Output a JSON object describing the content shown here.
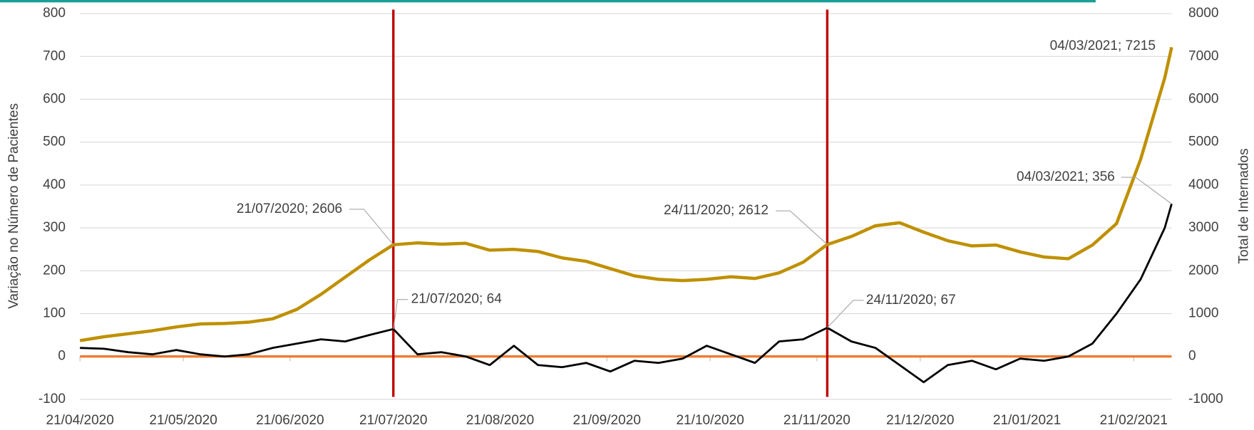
{
  "chart_data": {
    "type": "line",
    "y_label": "Variação no Número de Pacientes",
    "y2_label": "Total de Internados",
    "x": [
      "21/04/2020",
      "28/04/2020",
      "05/05/2020",
      "12/05/2020",
      "19/05/2020",
      "26/05/2020",
      "02/06/2020",
      "09/06/2020",
      "16/06/2020",
      "23/06/2020",
      "30/06/2020",
      "07/07/2020",
      "14/07/2020",
      "21/07/2020",
      "28/07/2020",
      "04/08/2020",
      "11/08/2020",
      "18/08/2020",
      "25/08/2020",
      "01/09/2020",
      "08/09/2020",
      "15/09/2020",
      "22/09/2020",
      "29/09/2020",
      "06/10/2020",
      "13/10/2020",
      "20/10/2020",
      "27/10/2020",
      "03/11/2020",
      "10/11/2020",
      "17/11/2020",
      "24/11/2020",
      "01/12/2020",
      "08/12/2020",
      "15/12/2020",
      "22/12/2020",
      "29/12/2020",
      "05/01/2021",
      "12/01/2021",
      "19/01/2021",
      "26/01/2021",
      "02/02/2021",
      "09/02/2021",
      "16/02/2021",
      "23/02/2021",
      "02/03/2021",
      "04/03/2021"
    ],
    "series": [
      {
        "color": "#000000",
        "values": [
          20,
          18,
          10,
          5,
          15,
          5,
          0,
          5,
          20,
          30,
          40,
          35,
          50,
          64,
          5,
          10,
          0,
          -20,
          25,
          -20,
          -25,
          -15,
          -35,
          -10,
          -15,
          -5,
          25,
          5,
          -15,
          35,
          40,
          67,
          35,
          20,
          -20,
          -60,
          -20,
          -10,
          -30,
          -5,
          -10,
          0,
          30,
          100,
          180,
          300,
          356
        ]
      },
      {
        "color": "#bf9000",
        "axis": "y2",
        "values": [
          370,
          460,
          530,
          600,
          690,
          760,
          770,
          800,
          880,
          1100,
          1450,
          1850,
          2250,
          2606,
          2650,
          2620,
          2640,
          2480,
          2500,
          2450,
          2300,
          2220,
          2050,
          1880,
          1800,
          1770,
          1800,
          1860,
          1820,
          1950,
          2200,
          2612,
          2800,
          3050,
          3120,
          2900,
          2700,
          2580,
          2600,
          2440,
          2320,
          2280,
          2600,
          3100,
          4600,
          6500,
          7215
        ]
      }
    ],
    "xlim": [
      "21/04/2020",
      "04/03/2021"
    ],
    "xticks": [
      "21/04/2020",
      "21/05/2020",
      "21/06/2020",
      "21/07/2020",
      "21/08/2020",
      "21/09/2020",
      "21/10/2020",
      "21/11/2020",
      "21/12/2020",
      "21/01/2021",
      "21/02/2021"
    ],
    "ylim": [
      -100,
      800
    ],
    "yticks": [
      -100,
      0,
      100,
      200,
      300,
      400,
      500,
      600,
      700,
      800
    ],
    "y2lim": [
      -1000,
      8000
    ],
    "y2ticks": [
      -1000,
      0,
      1000,
      2000,
      3000,
      4000,
      5000,
      6000,
      7000,
      8000
    ],
    "grid": true,
    "zero_line_color": "#ed7d31",
    "vlines": [
      "21/07/2020",
      "24/11/2020"
    ],
    "vline_color": "#c00000",
    "annotations": [
      {
        "label": "21/07/2020; 2606",
        "x": "21/07/2020",
        "value": 2606,
        "axis": "y2"
      },
      {
        "label": "21/07/2020; 64",
        "x": "21/07/2020",
        "value": 64
      },
      {
        "label": "24/11/2020; 2612",
        "x": "24/11/2020",
        "value": 2612,
        "axis": "y2"
      },
      {
        "label": "24/11/2020; 67",
        "x": "24/11/2020",
        "value": 67
      },
      {
        "label": "04/03/2021; 7215",
        "x": "04/03/2021",
        "value": 7215,
        "axis": "y2"
      },
      {
        "label": "04/03/2021; 356",
        "x": "04/03/2021",
        "value": 356
      }
    ]
  }
}
